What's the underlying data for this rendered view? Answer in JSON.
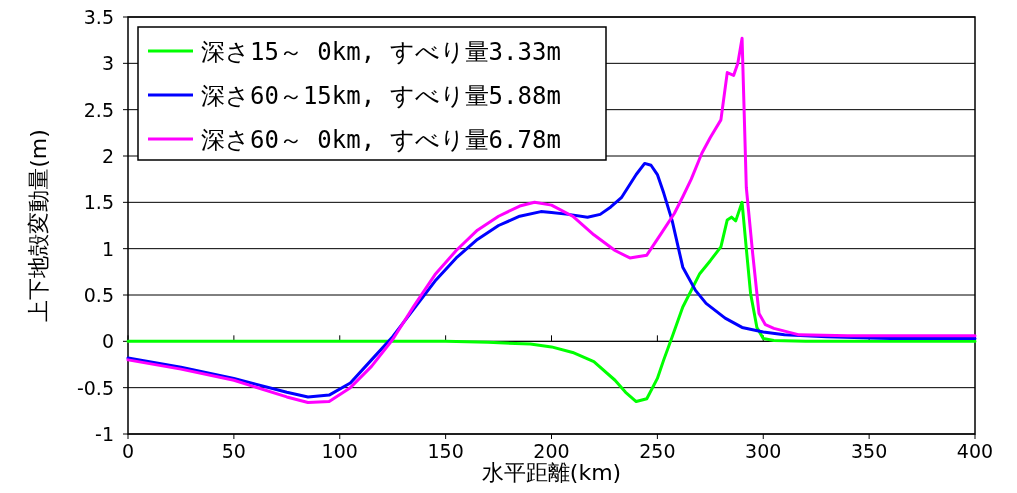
{
  "chart_data": {
    "type": "line",
    "xlabel": "水平距離(km)",
    "ylabel": "上下地殻変動量(m)",
    "xlim": [
      0,
      400
    ],
    "ylim": [
      -1,
      3.5
    ],
    "xticks": [
      0,
      50,
      100,
      150,
      200,
      250,
      300,
      350,
      400
    ],
    "yticks": [
      -1,
      -0.5,
      0,
      0.5,
      1,
      1.5,
      2,
      2.5,
      3,
      3.5
    ],
    "grid": "y",
    "legend": "top left",
    "series": [
      {
        "name": "深さ15～ 0km, すべり量3.33m",
        "color": "#00ff00",
        "x": [
          0,
          150,
          170,
          190,
          200,
          210,
          220,
          230,
          235,
          240,
          245,
          250,
          253,
          257,
          262,
          266,
          270,
          275,
          280,
          283,
          285,
          287,
          290,
          292,
          294,
          297,
          300,
          305,
          320,
          400
        ],
        "values": [
          0,
          0,
          -0.01,
          -0.03,
          -0.06,
          -0.12,
          -0.22,
          -0.42,
          -0.55,
          -0.65,
          -0.62,
          -0.4,
          -0.2,
          0.05,
          0.37,
          0.55,
          0.73,
          0.87,
          1.02,
          1.31,
          1.34,
          1.3,
          1.5,
          1.0,
          0.52,
          0.15,
          0.03,
          0.01,
          0,
          0
        ]
      },
      {
        "name": "深さ60～15km, すべり量5.88m",
        "color": "#0000ff",
        "x": [
          0,
          25,
          50,
          75,
          85,
          95,
          105,
          115,
          125,
          135,
          145,
          155,
          165,
          175,
          185,
          195,
          200,
          208,
          217,
          223,
          228,
          233,
          240,
          244,
          247,
          250,
          253,
          257,
          262,
          268,
          273,
          282,
          290,
          300,
          310,
          330,
          360,
          400
        ],
        "values": [
          -0.18,
          -0.28,
          -0.4,
          -0.55,
          -0.6,
          -0.58,
          -0.45,
          -0.2,
          0.05,
          0.35,
          0.65,
          0.9,
          1.1,
          1.25,
          1.35,
          1.4,
          1.39,
          1.37,
          1.34,
          1.37,
          1.45,
          1.55,
          1.8,
          1.92,
          1.9,
          1.8,
          1.6,
          1.3,
          0.8,
          0.55,
          0.41,
          0.25,
          0.15,
          0.1,
          0.07,
          0.05,
          0.03,
          0.03
        ]
      },
      {
        "name": "深さ60～ 0km, すべり量6.78m",
        "color": "#ff00ff",
        "x": [
          0,
          25,
          50,
          75,
          85,
          95,
          105,
          115,
          125,
          135,
          145,
          155,
          165,
          175,
          185,
          192,
          200,
          210,
          220,
          230,
          237,
          245,
          252,
          258,
          262,
          266,
          271,
          275,
          280,
          283,
          286,
          288,
          290,
          292,
          295,
          298,
          301,
          305,
          317,
          340,
          400
        ],
        "values": [
          -0.2,
          -0.3,
          -0.42,
          -0.6,
          -0.66,
          -0.65,
          -0.5,
          -0.27,
          0.02,
          0.38,
          0.72,
          0.98,
          1.2,
          1.35,
          1.46,
          1.5,
          1.47,
          1.35,
          1.15,
          0.98,
          0.9,
          0.93,
          1.17,
          1.38,
          1.56,
          1.75,
          2.03,
          2.2,
          2.39,
          2.9,
          2.87,
          3.0,
          3.27,
          1.66,
          0.95,
          0.3,
          0.18,
          0.14,
          0.07,
          0.06,
          0.06
        ]
      }
    ]
  }
}
